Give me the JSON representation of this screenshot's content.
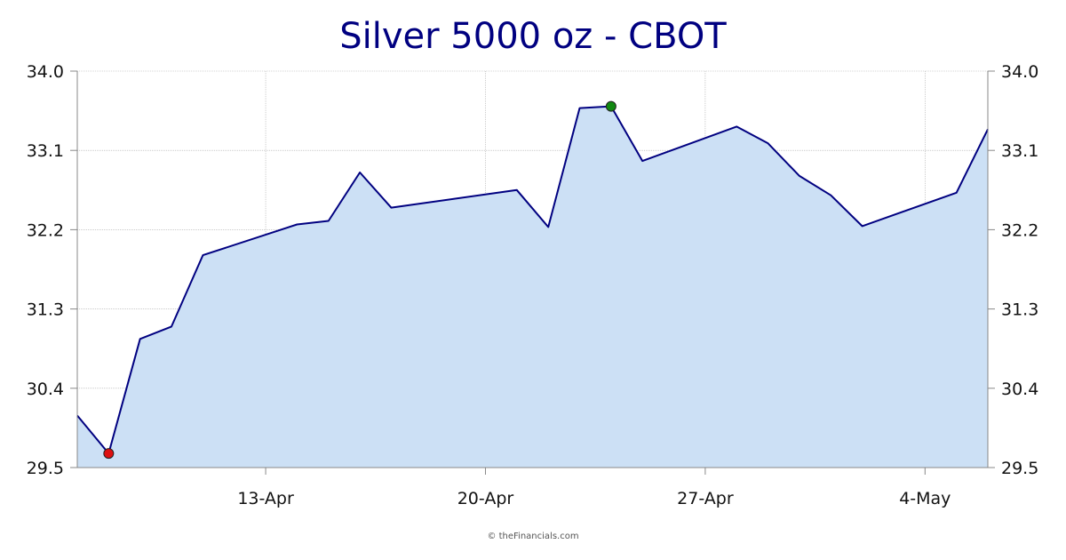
{
  "chart_data": {
    "type": "area",
    "title": "Silver 5000 oz - CBOT",
    "copyright": "© theFinancials.com",
    "ylim": [
      29.5,
      34.0
    ],
    "yticks": [
      "34.0",
      "33.1",
      "32.2",
      "31.3",
      "30.4",
      "29.5"
    ],
    "yticks_right": [
      "34.0",
      "33.1",
      "32.2",
      "31.3",
      "30.4",
      "29.5"
    ],
    "xticks": [
      {
        "label": "13-Apr",
        "date": "2024-04-13"
      },
      {
        "label": "20-Apr",
        "date": "2024-04-20"
      },
      {
        "label": "27-Apr",
        "date": "2024-04-27"
      },
      {
        "label": "4-May",
        "date": "2024-05-04"
      }
    ],
    "x_range": [
      "2024-04-07",
      "2024-05-06"
    ],
    "grid": true,
    "series": [
      {
        "points": [
          {
            "date": "2024-04-07",
            "value": 30.09
          },
          {
            "date": "2024-04-08",
            "value": 29.66
          },
          {
            "date": "2024-04-09",
            "value": 30.96
          },
          {
            "date": "2024-04-10",
            "value": 31.1
          },
          {
            "date": "2024-04-11",
            "value": 31.91
          },
          {
            "date": "2024-04-14",
            "value": 32.26
          },
          {
            "date": "2024-04-15",
            "value": 32.3
          },
          {
            "date": "2024-04-16",
            "value": 32.85
          },
          {
            "date": "2024-04-17",
            "value": 32.45
          },
          {
            "date": "2024-04-21",
            "value": 32.65
          },
          {
            "date": "2024-04-22",
            "value": 32.23
          },
          {
            "date": "2024-04-23",
            "value": 33.58
          },
          {
            "date": "2024-04-24",
            "value": 33.6
          },
          {
            "date": "2024-04-25",
            "value": 32.98
          },
          {
            "date": "2024-04-28",
            "value": 33.37
          },
          {
            "date": "2024-04-29",
            "value": 33.18
          },
          {
            "date": "2024-04-30",
            "value": 32.81
          },
          {
            "date": "2024-05-01",
            "value": 32.59
          },
          {
            "date": "2024-05-02",
            "value": 32.24
          },
          {
            "date": "2024-05-05",
            "value": 32.62
          },
          {
            "date": "2024-05-06",
            "value": 33.34
          }
        ]
      }
    ],
    "low_marker": {
      "date": "2024-04-08",
      "value": 29.66,
      "color": "#dd1111"
    },
    "high_marker": {
      "date": "2024-04-24",
      "value": 33.6,
      "color": "#118811"
    },
    "colors": {
      "line": "#000080",
      "fill": "#cce0f5",
      "grid": "#aaaaaa",
      "title": "#000080"
    }
  }
}
